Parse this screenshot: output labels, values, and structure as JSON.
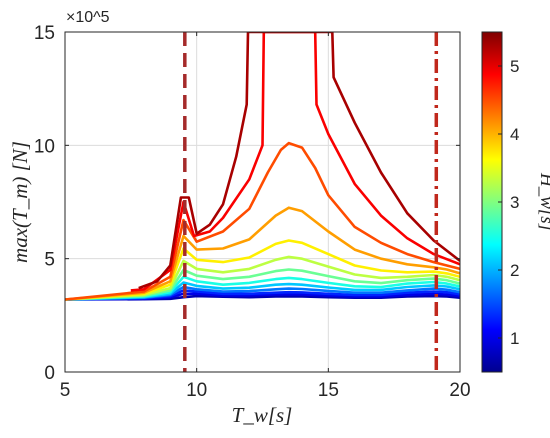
{
  "chart_data": {
    "type": "line",
    "xlabel": "T_w[s]",
    "ylabel": "max(T_m) [N]",
    "y_exponent_label": "×10^5",
    "colorbar_label": "H_w[s]",
    "xlim": [
      5,
      20
    ],
    "ylim": [
      0,
      1500000
    ],
    "x_ticks": [
      "5",
      "10",
      "15",
      "20"
    ],
    "y_ticks": [
      "0",
      "5",
      "10",
      "15"
    ],
    "colorbar_ticks": [
      "1",
      "2",
      "3",
      "4",
      "5"
    ],
    "colorbar_range": [
      0.5,
      5.5
    ],
    "colormap": "jet",
    "grid": true,
    "vertical_markers": [
      {
        "x": 9.55,
        "style": "dashed",
        "color": "#a52a2a"
      },
      {
        "x": 19.1,
        "style": "dash-dot",
        "color": "#c0281c"
      }
    ],
    "series": [
      {
        "Hw": 0.75,
        "points": [
          [
            5,
            320000
          ],
          [
            8,
            321000
          ],
          [
            9,
            323000
          ],
          [
            9.5,
            330000
          ],
          [
            10,
            335000
          ],
          [
            11,
            332000
          ],
          [
            12,
            330000
          ],
          [
            13,
            333000
          ],
          [
            13.5,
            334000
          ],
          [
            14,
            333000
          ],
          [
            15,
            330000
          ],
          [
            16,
            328000
          ],
          [
            17,
            328000
          ],
          [
            18,
            333000
          ],
          [
            19,
            335000
          ],
          [
            19.5,
            333000
          ],
          [
            20,
            328000
          ]
        ]
      },
      {
        "Hw": 1.0,
        "points": [
          [
            5,
            320000
          ],
          [
            8,
            323000
          ],
          [
            9,
            330000
          ],
          [
            9.5,
            345000
          ],
          [
            10,
            345000
          ],
          [
            11,
            338000
          ],
          [
            12,
            338000
          ],
          [
            13,
            342000
          ],
          [
            13.5,
            343000
          ],
          [
            14,
            342000
          ],
          [
            15,
            337000
          ],
          [
            16,
            333000
          ],
          [
            17,
            333000
          ],
          [
            18,
            340000
          ],
          [
            19,
            345000
          ],
          [
            19.5,
            342000
          ],
          [
            20,
            335000
          ]
        ]
      },
      {
        "Hw": 1.3,
        "points": [
          [
            5,
            320000
          ],
          [
            8,
            325000
          ],
          [
            9,
            335000
          ],
          [
            9.5,
            360000
          ],
          [
            10,
            355000
          ],
          [
            11,
            345000
          ],
          [
            12,
            345000
          ],
          [
            13,
            350000
          ],
          [
            13.5,
            352000
          ],
          [
            14,
            351000
          ],
          [
            15,
            345000
          ],
          [
            16,
            340000
          ],
          [
            17,
            340000
          ],
          [
            18,
            350000
          ],
          [
            19,
            355000
          ],
          [
            19.5,
            352000
          ],
          [
            20,
            343000
          ]
        ]
      },
      {
        "Hw": 1.7,
        "points": [
          [
            5,
            320000
          ],
          [
            8,
            328000
          ],
          [
            9,
            340000
          ],
          [
            9.5,
            375000
          ],
          [
            10,
            365000
          ],
          [
            11,
            355000
          ],
          [
            12,
            357000
          ],
          [
            13,
            365000
          ],
          [
            13.5,
            368000
          ],
          [
            14,
            366000
          ],
          [
            15,
            358000
          ],
          [
            16,
            350000
          ],
          [
            17,
            350000
          ],
          [
            18,
            360000
          ],
          [
            19,
            368000
          ],
          [
            19.5,
            363000
          ],
          [
            20,
            352000
          ]
        ]
      },
      {
        "Hw": 2.1,
        "points": [
          [
            5,
            320000
          ],
          [
            8,
            330000
          ],
          [
            9,
            345000
          ],
          [
            9.5,
            395000
          ],
          [
            10,
            380000
          ],
          [
            11,
            368000
          ],
          [
            12,
            372000
          ],
          [
            13,
            385000
          ],
          [
            13.5,
            388000
          ],
          [
            14,
            385000
          ],
          [
            15,
            373000
          ],
          [
            16,
            362000
          ],
          [
            17,
            362000
          ],
          [
            18,
            375000
          ],
          [
            19,
            382000
          ],
          [
            19.5,
            377000
          ],
          [
            20,
            365000
          ]
        ]
      },
      {
        "Hw": 2.5,
        "points": [
          [
            5,
            320000
          ],
          [
            8,
            333000
          ],
          [
            9,
            352000
          ],
          [
            9.5,
            420000
          ],
          [
            10,
            400000
          ],
          [
            11,
            385000
          ],
          [
            12,
            393000
          ],
          [
            13,
            410000
          ],
          [
            13.5,
            415000
          ],
          [
            14,
            410000
          ],
          [
            15,
            393000
          ],
          [
            16,
            378000
          ],
          [
            17,
            375000
          ],
          [
            18,
            390000
          ],
          [
            19,
            397000
          ],
          [
            19.5,
            390000
          ],
          [
            20,
            377000
          ]
        ]
      },
      {
        "Hw": 2.9,
        "points": [
          [
            5,
            320000
          ],
          [
            8,
            336000
          ],
          [
            9,
            360000
          ],
          [
            9.5,
            450000
          ],
          [
            10,
            425000
          ],
          [
            11,
            410000
          ],
          [
            12,
            420000
          ],
          [
            13,
            445000
          ],
          [
            13.5,
            452000
          ],
          [
            14,
            447000
          ],
          [
            15,
            423000
          ],
          [
            16,
            400000
          ],
          [
            17,
            392000
          ],
          [
            18,
            405000
          ],
          [
            19,
            412000
          ],
          [
            19.5,
            405000
          ],
          [
            20,
            390000
          ]
        ]
      },
      {
        "Hw": 3.3,
        "points": [
          [
            5,
            320000
          ],
          [
            8,
            340000
          ],
          [
            9,
            370000
          ],
          [
            9.5,
            490000
          ],
          [
            10,
            455000
          ],
          [
            11,
            440000
          ],
          [
            12,
            455000
          ],
          [
            13,
            495000
          ],
          [
            13.5,
            508000
          ],
          [
            14,
            500000
          ],
          [
            15,
            465000
          ],
          [
            16,
            430000
          ],
          [
            17,
            415000
          ],
          [
            18,
            420000
          ],
          [
            19,
            428000
          ],
          [
            19.5,
            420000
          ],
          [
            20,
            405000
          ]
        ]
      },
      {
        "Hw": 3.7,
        "points": [
          [
            5,
            320000
          ],
          [
            8,
            345000
          ],
          [
            9,
            385000
          ],
          [
            9.5,
            545000
          ],
          [
            10,
            495000
          ],
          [
            11,
            485000
          ],
          [
            12,
            505000
          ],
          [
            13,
            565000
          ],
          [
            13.5,
            580000
          ],
          [
            14,
            570000
          ],
          [
            15,
            520000
          ],
          [
            16,
            470000
          ],
          [
            17,
            448000
          ],
          [
            18,
            440000
          ],
          [
            19,
            443000
          ],
          [
            19.5,
            435000
          ],
          [
            20,
            420000
          ]
        ]
      },
      {
        "Hw": 4.1,
        "points": [
          [
            5,
            320000
          ],
          [
            8,
            350000
          ],
          [
            9,
            400000
          ],
          [
            9.5,
            600000
          ],
          [
            10,
            540000
          ],
          [
            11,
            545000
          ],
          [
            12,
            585000
          ],
          [
            13,
            690000
          ],
          [
            13.5,
            725000
          ],
          [
            14,
            710000
          ],
          [
            15,
            620000
          ],
          [
            16,
            540000
          ],
          [
            17,
            500000
          ],
          [
            18,
            475000
          ],
          [
            19,
            462000
          ],
          [
            19.5,
            452000
          ],
          [
            20,
            435000
          ]
        ]
      },
      {
        "Hw": 4.5,
        "points": [
          [
            5,
            320000
          ],
          [
            8,
            355000
          ],
          [
            9,
            420000
          ],
          [
            9.5,
            670000
          ],
          [
            10,
            575000
          ],
          [
            11,
            620000
          ],
          [
            12,
            720000
          ],
          [
            12.7,
            880000
          ],
          [
            13.2,
            980000
          ],
          [
            13.5,
            1010000
          ],
          [
            14,
            990000
          ],
          [
            14.5,
            900000
          ],
          [
            15,
            780000
          ],
          [
            16,
            640000
          ],
          [
            17,
            570000
          ],
          [
            18,
            520000
          ],
          [
            19,
            485000
          ],
          [
            19.5,
            470000
          ],
          [
            20,
            455000
          ]
        ]
      },
      {
        "Hw": 4.9,
        "points": [
          [
            7.5,
            360000
          ],
          [
            8,
            365000
          ],
          [
            9,
            450000
          ],
          [
            9.5,
            750000
          ],
          [
            9.9,
            600000
          ],
          [
            10.5,
            620000
          ],
          [
            11,
            680000
          ],
          [
            12,
            850000
          ],
          [
            12.5,
            1000000
          ],
          [
            12.55,
            1500000
          ],
          [
            14.5,
            1500000
          ],
          [
            14.55,
            1180000
          ],
          [
            15,
            1050000
          ],
          [
            16,
            830000
          ],
          [
            17,
            690000
          ],
          [
            18,
            590000
          ],
          [
            19,
            520000
          ],
          [
            20,
            475000
          ]
        ]
      },
      {
        "Hw": 5.3,
        "points": [
          [
            7.8,
            370000
          ],
          [
            8.5,
            400000
          ],
          [
            9,
            470000
          ],
          [
            9.4,
            770000
          ],
          [
            9.7,
            770000
          ],
          [
            10,
            610000
          ],
          [
            10.5,
            650000
          ],
          [
            11,
            740000
          ],
          [
            11.5,
            950000
          ],
          [
            11.9,
            1180000
          ],
          [
            11.95,
            1500000
          ],
          [
            15.15,
            1500000
          ],
          [
            15.2,
            1300000
          ],
          [
            16,
            1100000
          ],
          [
            17,
            880000
          ],
          [
            18,
            700000
          ],
          [
            19,
            580000
          ],
          [
            20,
            490000
          ]
        ]
      }
    ]
  }
}
